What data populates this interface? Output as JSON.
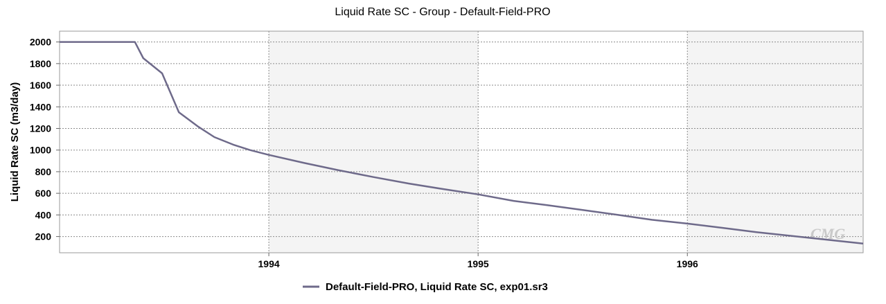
{
  "chart_data": {
    "type": "line",
    "title": "Liquid Rate SC - Group - Default-Field-PRO",
    "xlabel": "",
    "ylabel": "Liquid Rate SC (m3/day)",
    "xlim": [
      1993.0,
      1996.84
    ],
    "ylim": [
      50,
      2100
    ],
    "y_ticks": [
      200,
      400,
      600,
      800,
      1000,
      1200,
      1400,
      1600,
      1800,
      2000
    ],
    "x_ticks": [
      {
        "value": 1994,
        "label": "1994"
      },
      {
        "value": 1995,
        "label": "1995"
      },
      {
        "value": 1996,
        "label": "1996"
      }
    ],
    "grid": true,
    "legend_position": "bottom",
    "series": [
      {
        "name": "Default-Field-PRO, Liquid Rate SC, exp01.sr3",
        "color": "#6e6a8a",
        "x": [
          1993.0,
          1993.36,
          1993.4,
          1993.49,
          1993.57,
          1993.66,
          1993.74,
          1993.83,
          1993.91,
          1994.0,
          1994.17,
          1994.33,
          1994.5,
          1994.67,
          1994.83,
          1995.0,
          1995.17,
          1995.33,
          1995.5,
          1995.67,
          1995.83,
          1996.0,
          1996.17,
          1996.33,
          1996.5,
          1996.67,
          1996.84
        ],
        "y": [
          2000,
          2000,
          1850,
          1710,
          1350,
          1220,
          1120,
          1050,
          1000,
          955,
          880,
          815,
          750,
          690,
          640,
          590,
          530,
          490,
          445,
          400,
          355,
          320,
          280,
          240,
          205,
          170,
          135
        ]
      }
    ],
    "watermark": "CMG"
  }
}
